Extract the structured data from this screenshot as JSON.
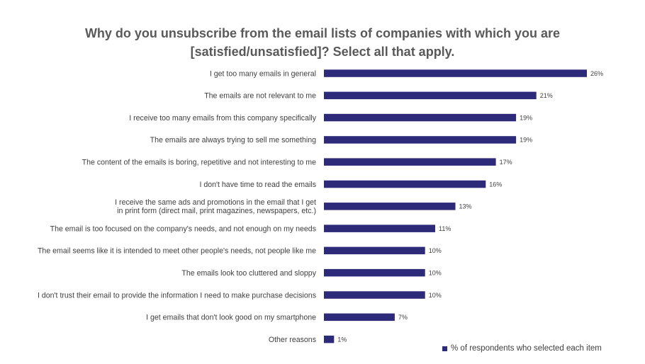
{
  "title": {
    "line1": "Why do you unsubscribe from the email lists of companies with which you are",
    "line2": "[satisfied/unsatisfied]? Select all that apply."
  },
  "legend": {
    "label": "% of respondents who selected each item"
  },
  "colors": {
    "bar": "#2e2a7a",
    "title": "#595959",
    "text": "#404040"
  },
  "chart_data": {
    "type": "bar",
    "orientation": "horizontal",
    "title": "Why do you unsubscribe from the email lists of companies with which you are [satisfied/unsatisfied]? Select all that apply.",
    "xlabel": "",
    "ylabel": "",
    "xlim": [
      0,
      26
    ],
    "grid": false,
    "legend_position": "bottom-right",
    "categories": [
      [
        "I get too many emails in general"
      ],
      [
        "The emails are not relevant to me"
      ],
      [
        "I receive too many emails from this company specifically"
      ],
      [
        "The emails are always trying to sell me something"
      ],
      [
        "The content of the emails is boring, repetitive and not interesting to me"
      ],
      [
        "I don't have time to read the emails"
      ],
      [
        "I receive the same ads and promotions in the email that I get",
        "in print form (direct mail, print magazines, newspapers, etc.)"
      ],
      [
        "The email is too focused on the company's needs, and not enough on my needs"
      ],
      [
        "The email seems like it is intended to meet other people's needs, not people like me"
      ],
      [
        "The emails look too cluttered and sloppy"
      ],
      [
        "I don't trust their email to provide the information I need to make purchase decisions"
      ],
      [
        "I get emails that don't look good on my smartphone"
      ],
      [
        "Other reasons"
      ]
    ],
    "series": [
      {
        "name": "% of respondents who selected each item",
        "values": [
          26,
          21,
          19,
          19,
          17,
          16,
          13,
          11,
          10,
          10,
          10,
          7,
          1
        ],
        "labels": [
          "26%",
          "21%",
          "19%",
          "19%",
          "17%",
          "16%",
          "13%",
          "11%",
          "10%",
          "10%",
          "10%",
          "7%",
          "1%"
        ]
      }
    ]
  }
}
